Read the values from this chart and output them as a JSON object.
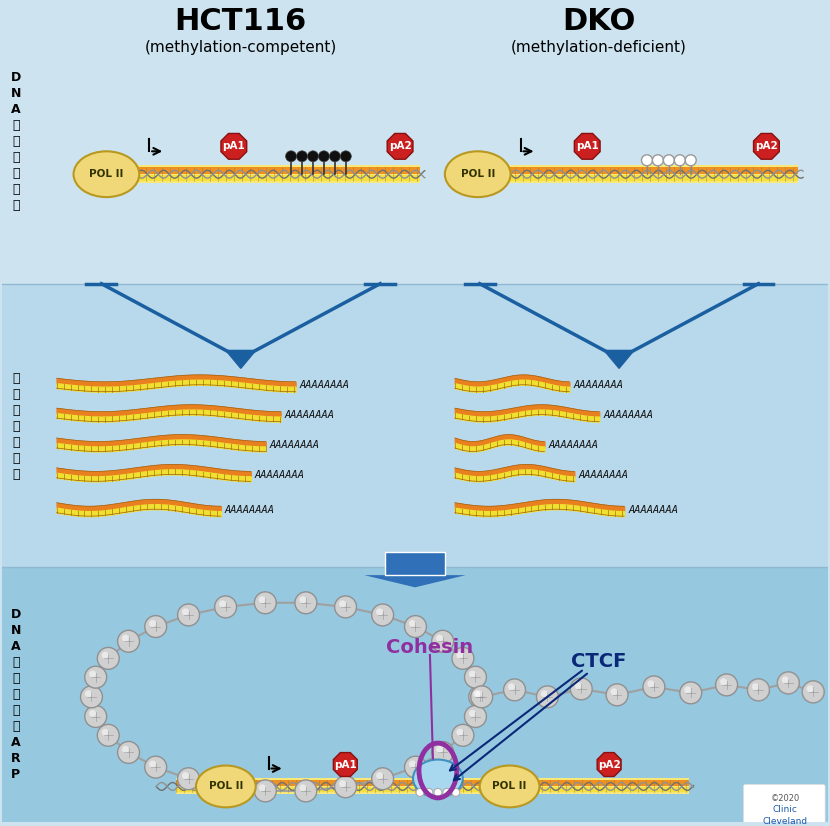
{
  "bg_top_panel": "#cde4f0",
  "bg_mid_panel": "#b8d8ec",
  "bg_bot_panel": "#96c8e0",
  "title_hct116": "HCT116",
  "subtitle_hct116": "(methylation-competent)",
  "title_dko": "DKO",
  "subtitle_dko": "(methylation-deficient)",
  "label_left1": "DNA\n甲\n基\n化\n的\n差\n异",
  "label_left2": "转\n录\n组\n的\n多\n样\n性",
  "label_left3": "DNA\n甲\n基\n化\n调\n节\nARP",
  "cohesin_label": "Cohesin",
  "ctcf_label": "CTCF",
  "pol2_fill": "#f0d878",
  "pol2_edge": "#b89820",
  "dna_orange": "#f09020",
  "dna_yellow": "#f5e040",
  "dna_highlight": "#f8e878",
  "pa_red": "#cc2020",
  "pa_edge": "#881010",
  "arrow_blue": "#1a5fa0",
  "arrow_fill": "#3070b8",
  "cohesin_color": "#9030a0",
  "ctcf_fill": "#a8d8f0",
  "ctcf_edge": "#4090c0",
  "chrom_fill": "#d0d0d0",
  "chrom_edge": "#909090",
  "chrom_line": "#a0a0a0",
  "methyl_black": "#101010",
  "methyl_stem": "#333333",
  "dna_helix_dark": "#888040",
  "dna_helix_mid": "#b09040",
  "poly_a_color": "#111111",
  "mrna_orange": "#e88020",
  "mrna_yellow": "#f0e030",
  "mrna_edge": "#a06010",
  "panel_divider": "#90b8d0"
}
